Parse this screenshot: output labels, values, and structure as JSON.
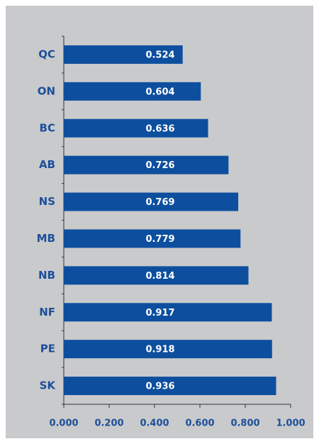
{
  "chart_data": {
    "type": "bar",
    "orientation": "horizontal",
    "categories": [
      "QC",
      "ON",
      "BC",
      "AB",
      "NS",
      "MB",
      "NB",
      "NF",
      "PE",
      "SK"
    ],
    "values": [
      0.524,
      0.604,
      0.636,
      0.726,
      0.769,
      0.779,
      0.814,
      0.917,
      0.918,
      0.936
    ],
    "color": "#0d4f9e",
    "xlim": [
      0,
      1
    ],
    "xticks": [
      {
        "value": 0,
        "label": "0.000"
      },
      {
        "value": 0.2,
        "label": "0.200"
      },
      {
        "value": 0.4,
        "label": "0.400"
      },
      {
        "value": 0.6,
        "label": "0.600"
      },
      {
        "value": 0.8,
        "label": "0.800"
      },
      {
        "value": 1,
        "label": "1.000"
      }
    ]
  }
}
